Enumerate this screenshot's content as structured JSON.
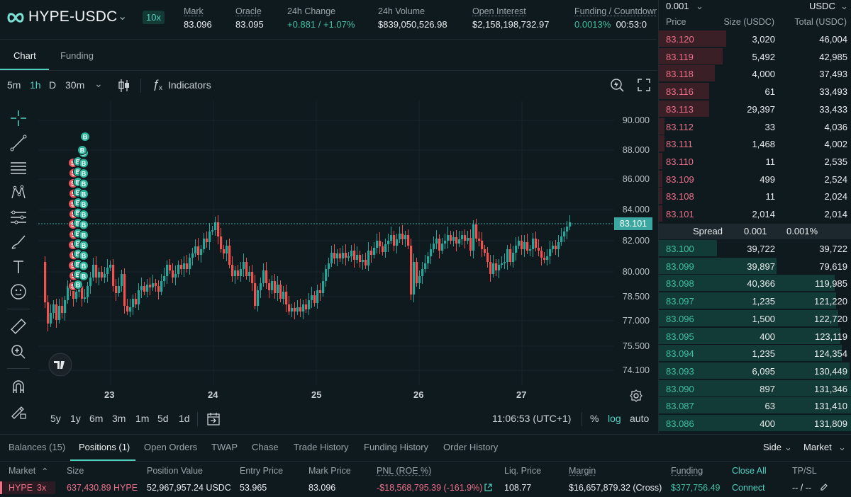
{
  "header": {
    "pair": "HYPE-USDC",
    "leverage": "10x",
    "stats": [
      {
        "label": "Mark",
        "value": "83.096"
      },
      {
        "label": "Oracle",
        "value": "83.095"
      },
      {
        "label": "24h Change",
        "value": "+0.881 / +1.07%"
      },
      {
        "label": "24h Volume",
        "value": "$839,050,526.98"
      },
      {
        "label": "Open Interest",
        "value": "$2,158,198,732.97"
      },
      {
        "label": "Funding / Countdown",
        "value": "0.0013%",
        "countdown": "00:53:0"
      }
    ]
  },
  "tabs": {
    "chart": "Chart",
    "funding": "Funding"
  },
  "toolbar": {
    "intervals": [
      "5m",
      "1h",
      "D",
      "30m"
    ],
    "active_interval": "1h",
    "indicators": "Indicators",
    "indicator_glyph": "ƒ",
    "indicator_sub": "x"
  },
  "left_tools": [
    "crosshair-icon",
    "trendline-icon",
    "horizontal-lines-icon",
    "pattern-icon",
    "fib-icon",
    "brush-icon",
    "text-icon",
    "emoji-icon",
    "ruler-icon",
    "zoom-in-icon",
    "magnet-icon",
    "lock-draw-icon"
  ],
  "chart_data": {
    "type": "candlestick",
    "y_ticks": [
      "90.000",
      "88.000",
      "86.000",
      "84.000",
      "82.000",
      "80.000",
      "78.500",
      "77.000",
      "75.500",
      "74.100"
    ],
    "x_ticks": [
      "23",
      "24",
      "25",
      "26",
      "27"
    ],
    "last_price": "83.101",
    "trade_markers": {
      "buy": "B",
      "sell": "S"
    },
    "colors": {
      "up": "#26a69a",
      "down": "#ef5350"
    }
  },
  "bottom_bar": {
    "ranges": [
      "5y",
      "1y",
      "6m",
      "3m",
      "1m",
      "5d",
      "1d"
    ],
    "time": "11:06:53 (UTC+1)",
    "percent": "%",
    "log": "log",
    "auto": "auto"
  },
  "orderbook": {
    "tick": "0.001",
    "currency": "USDC",
    "headers": {
      "price": "Price",
      "size": "Size (USDC)",
      "total": "Total (USDC)"
    },
    "asks": [
      {
        "price": "83.120",
        "size": "3,020",
        "total": "46,004",
        "depth": 0.35
      },
      {
        "price": "83.119",
        "size": "5,492",
        "total": "42,985",
        "depth": 0.33
      },
      {
        "price": "83.118",
        "size": "4,000",
        "total": "37,493",
        "depth": 0.29
      },
      {
        "price": "83.116",
        "size": "61",
        "total": "33,493",
        "depth": 0.26
      },
      {
        "price": "83.113",
        "size": "29,397",
        "total": "33,433",
        "depth": 0.26
      },
      {
        "price": "83.112",
        "size": "33",
        "total": "4,036",
        "depth": 0.03
      },
      {
        "price": "83.111",
        "size": "1,468",
        "total": "4,002",
        "depth": 0.03
      },
      {
        "price": "83.110",
        "size": "11",
        "total": "2,535",
        "depth": 0.02
      },
      {
        "price": "83.109",
        "size": "499",
        "total": "2,524",
        "depth": 0.02
      },
      {
        "price": "83.108",
        "size": "11",
        "total": "2,024",
        "depth": 0.02
      },
      {
        "price": "83.101",
        "size": "2,014",
        "total": "2,014",
        "depth": 0.02
      }
    ],
    "spread": {
      "label": "Spread",
      "value": "0.001",
      "pct": "0.001%"
    },
    "bids": [
      {
        "price": "83.100",
        "size": "39,722",
        "total": "39,722",
        "depth": 0.3
      },
      {
        "price": "83.099",
        "size": "39,897",
        "total": "79,619",
        "depth": 0.61
      },
      {
        "price": "83.098",
        "size": "40,366",
        "total": "119,985",
        "depth": 0.91
      },
      {
        "price": "83.097",
        "size": "1,235",
        "total": "121,220",
        "depth": 0.92
      },
      {
        "price": "83.096",
        "size": "1,500",
        "total": "122,720",
        "depth": 0.93
      },
      {
        "price": "83.095",
        "size": "400",
        "total": "123,119",
        "depth": 0.94
      },
      {
        "price": "83.094",
        "size": "1,235",
        "total": "124,354",
        "depth": 0.95
      },
      {
        "price": "83.093",
        "size": "6,095",
        "total": "130,449",
        "depth": 0.99
      },
      {
        "price": "83.090",
        "size": "897",
        "total": "131,346",
        "depth": 1.0
      },
      {
        "price": "83.087",
        "size": "63",
        "total": "131,410",
        "depth": 1.0
      },
      {
        "price": "83.086",
        "size": "400",
        "total": "131,809",
        "depth": 1.0
      }
    ]
  },
  "bottom_panel": {
    "tabs": [
      "Balances (15)",
      "Positions (1)",
      "Open Orders",
      "TWAP",
      "Chase",
      "Trade History",
      "Funding History",
      "Order History"
    ],
    "active_tab": "Positions (1)",
    "side_filter": "Side",
    "order_type_filter": "Market",
    "headers": [
      "Market",
      "Size",
      "Position Value",
      "Entry Price",
      "Mark Price",
      "PNL (ROE %)",
      "Liq. Price",
      "Margin",
      "Funding",
      "Close All",
      "TP/SL"
    ],
    "position": {
      "market": "HYPE",
      "leverage": "3x",
      "size": "637,430.89 HYPE",
      "value": "52,967,957.24 USDC",
      "entry": "53.965",
      "mark": "83.096",
      "pnl": "-$18,568,795.39 (-161.9%)",
      "liq": "108.77",
      "margin": "$16,657,879.32 (Cross)",
      "funding": "$377,756.49",
      "action": "Connect",
      "tpsl": "-- / --"
    }
  }
}
